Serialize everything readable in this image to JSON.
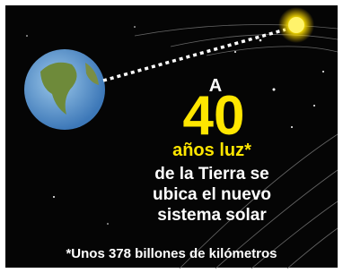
{
  "headline": {
    "prefix": "A",
    "number": 40,
    "unit": "años luz*",
    "lines": [
      "de la Tierra se",
      "ubica el nuevo",
      "sistema solar"
    ]
  },
  "footnote": "*Unos 378 billones de kilómetros"
}
